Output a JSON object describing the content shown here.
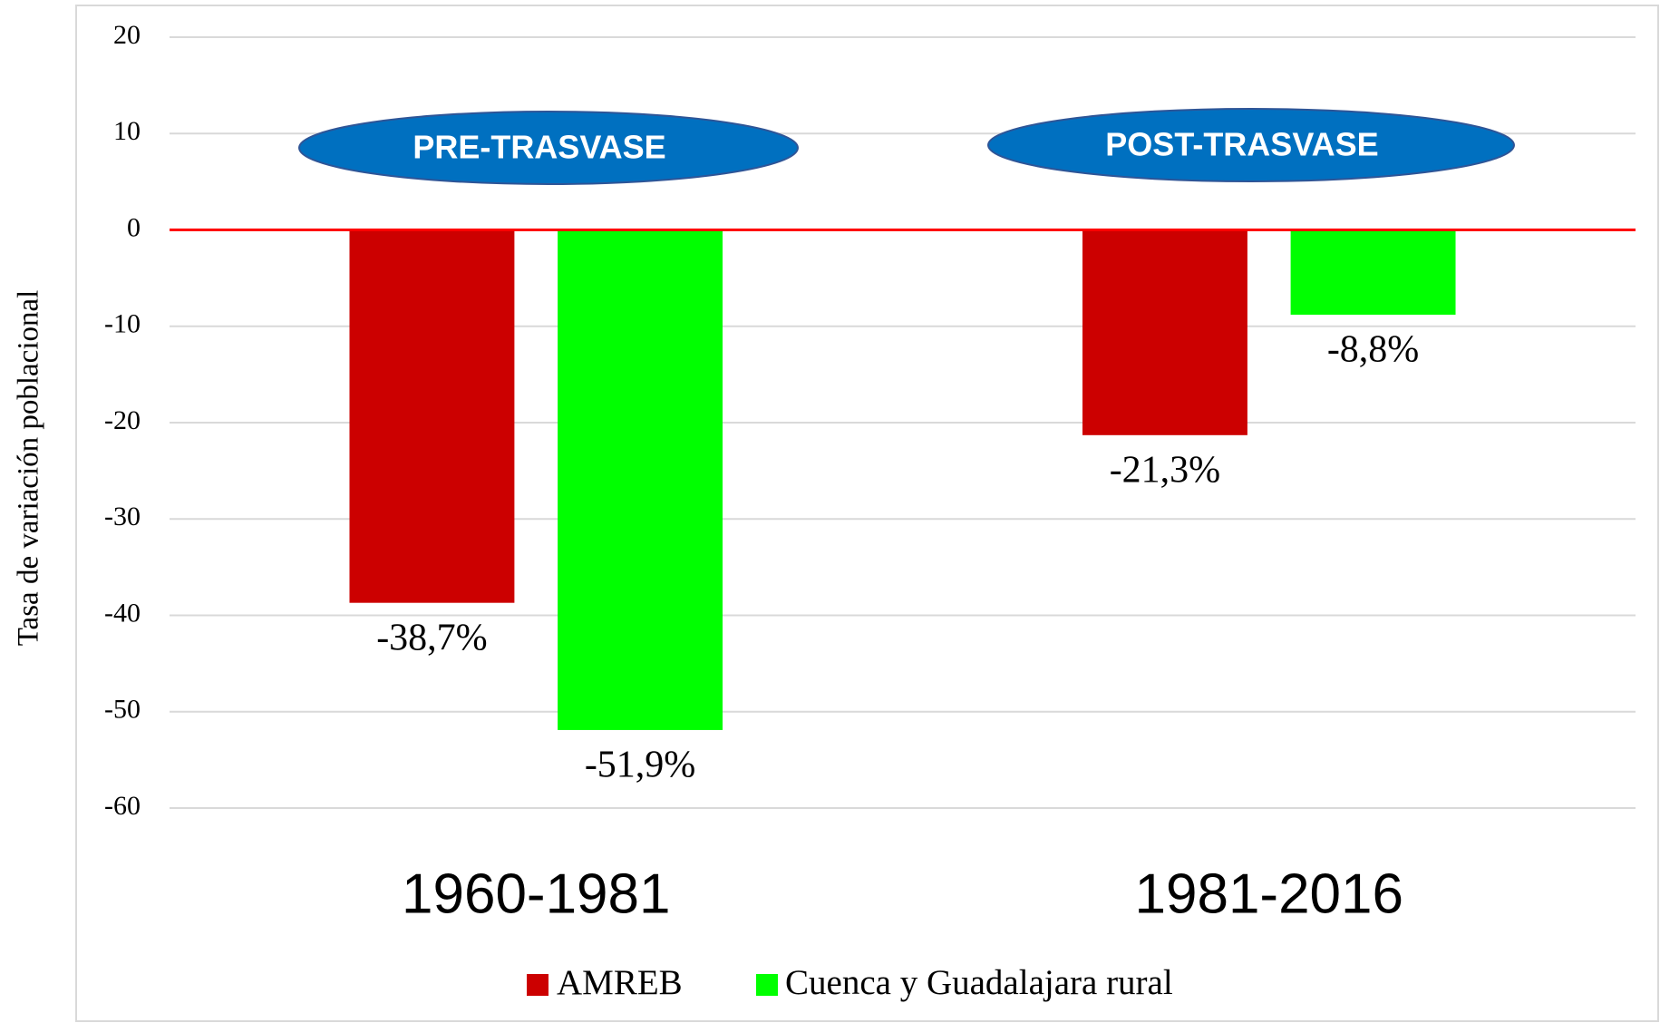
{
  "chart_data": {
    "type": "bar",
    "y_axis_label": "Tasa de variación poblacional",
    "categories": [
      "1960-1981",
      "1981-2016"
    ],
    "series": [
      {
        "name": "AMREB",
        "color": "#cc0000",
        "values": [
          -38.7,
          -21.3
        ],
        "value_labels": [
          "-38,7%",
          "-21,3%"
        ]
      },
      {
        "name": "Cuenca y Guadalajara rural",
        "color": "#00ff00",
        "values": [
          -51.9,
          -8.8
        ],
        "value_labels": [
          "-51,9%",
          "-8,8%"
        ]
      }
    ],
    "ylim": [
      -60,
      20
    ],
    "yticks": [
      -60,
      -50,
      -40,
      -30,
      -20,
      -10,
      0,
      10,
      20
    ],
    "grid": true,
    "zero_line_color": "#ff0000",
    "legend": "bottom",
    "annotations": [
      {
        "text": "PRE-TRASVASE",
        "color": "#0070c0"
      },
      {
        "text": "POST-TRASVASE",
        "color": "#0070c0"
      }
    ]
  }
}
